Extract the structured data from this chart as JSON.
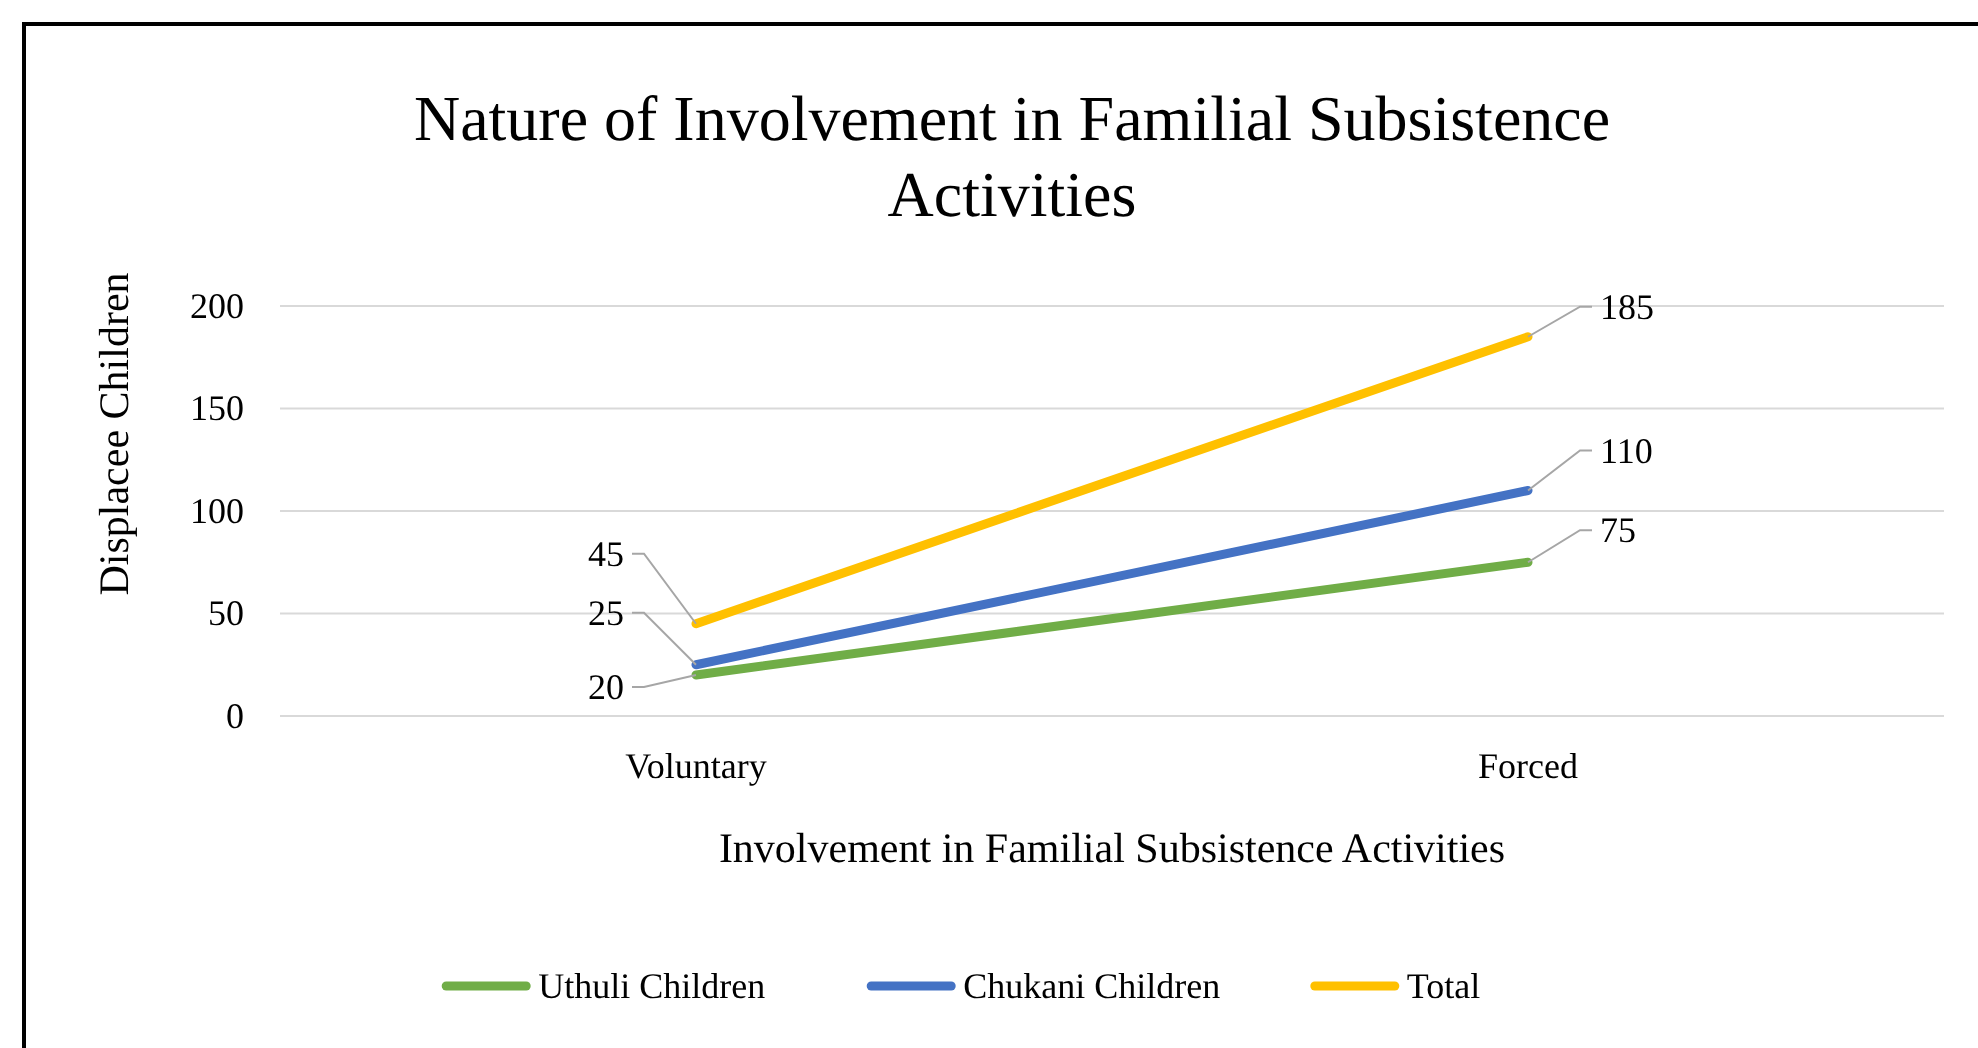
{
  "chart_data": {
    "type": "line",
    "title": "Nature of Involvement in Familial Subsistence Activities",
    "xlabel": "Involvement in Familial Subsistence Activities",
    "ylabel": "Displacee Children",
    "categories": [
      "Voluntary",
      "Forced"
    ],
    "series": [
      {
        "name": "Uthuli Children",
        "color": "#70ad47",
        "values": [
          20,
          75
        ]
      },
      {
        "name": "Chukani Children",
        "color": "#4472c4",
        "values": [
          25,
          110
        ]
      },
      {
        "name": "Total",
        "color": "#ffc000",
        "values": [
          45,
          185
        ]
      }
    ],
    "ylim": [
      0,
      200
    ],
    "yticks": [
      0,
      50,
      100,
      150,
      200
    ],
    "grid": "y",
    "legend": "bottom",
    "data_labels": true,
    "line_style": "solid"
  }
}
